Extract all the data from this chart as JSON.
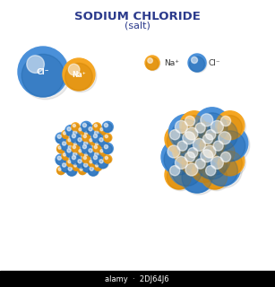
{
  "title": "SODIUM CHLORIDE",
  "subtitle": "(salt)",
  "title_color": "#2B3A8C",
  "subtitle_color": "#2B3A8C",
  "na_color": "#F5A623",
  "na_color_dark": "#C97D00",
  "cl_color": "#4A90D9",
  "cl_color_dark": "#1A5FA0",
  "background": "#FFFFFF",
  "na_label": "Na⁺",
  "cl_label": "Cl⁻",
  "grid_color": "#D4C89A",
  "watermark": "2DJ64J6"
}
